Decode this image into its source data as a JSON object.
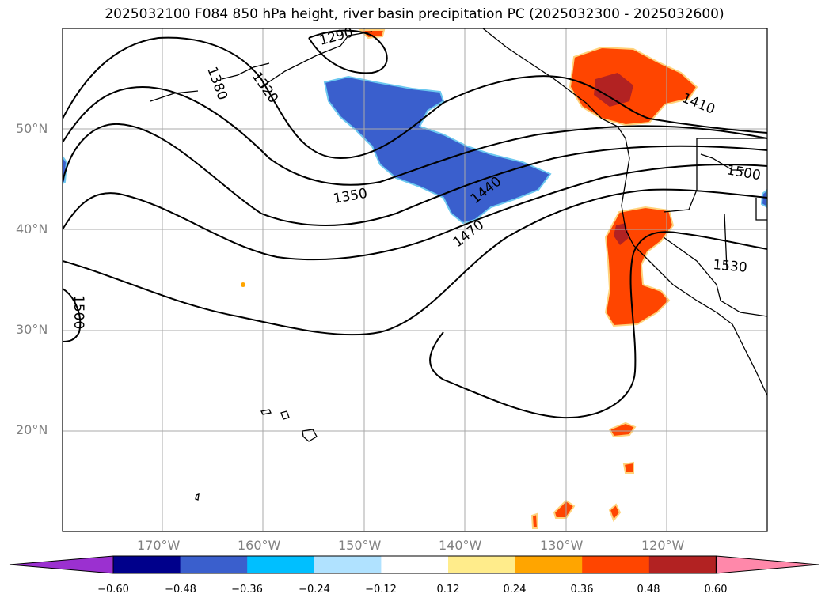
{
  "title": "2025032100 F084 850 hPa height, river basin precipitation PC (2025032300 - 2025032600)",
  "map": {
    "lat_labels": [
      "50°N",
      "40°N",
      "30°N",
      "20°N"
    ],
    "lon_labels": [
      "170°W",
      "160°W",
      "150°W",
      "140°W",
      "130°W",
      "120°W"
    ],
    "contour_labels": [
      "1290",
      "1320",
      "1350",
      "1380",
      "1410",
      "1440",
      "1470",
      "1500",
      "1500",
      "1500",
      "1530"
    ],
    "gridlines": true
  },
  "colorbar": {
    "tick_labels": [
      "−0.60",
      "−0.48",
      "−0.36",
      "−0.24",
      "−0.12",
      "0.12",
      "0.24",
      "0.36",
      "0.48",
      "0.60"
    ],
    "colors": [
      "#9b30d0",
      "#00008b",
      "#3a5fcd",
      "#00bfff",
      "#b0e2ff",
      "#ffffff",
      "#ffec8b",
      "#ffa500",
      "#ff4500",
      "#b22222",
      "#ff88aa"
    ],
    "extend": "both"
  }
}
